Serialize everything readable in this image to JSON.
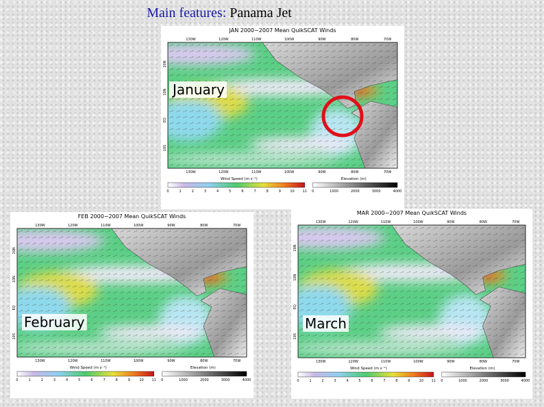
{
  "title": {
    "lead": "Main features:",
    "rest": "Panama Jet"
  },
  "panels": [
    {
      "map_title": "JAN 2000−2007 Mean QuikSCAT Winds",
      "month": "January",
      "lon_labels": [
        "130W",
        "120W",
        "110W",
        "100W",
        "90W",
        "80W",
        "70W"
      ],
      "lat_labels": [
        "20N",
        "10N",
        "EQ",
        "10S"
      ],
      "wind_caption": "Wind Speed (m s⁻¹)",
      "wind_ticks": [
        0,
        1,
        2,
        3,
        4,
        5,
        6,
        7,
        8,
        9,
        10,
        11
      ],
      "elev_caption": "Elevation (m)",
      "elev_ticks": [
        0,
        1000,
        2000,
        3000,
        4000
      ]
    },
    {
      "map_title": "FEB 2000−2007 Mean QuikSCAT Winds",
      "month": "February",
      "lon_labels": [
        "130W",
        "120W",
        "110W",
        "100W",
        "90W",
        "80W",
        "70W"
      ],
      "lat_labels": [
        "20N",
        "10N",
        "EQ",
        "10S"
      ],
      "wind_caption": "Wind Speed (m s⁻¹)",
      "wind_ticks": [
        0,
        1,
        2,
        3,
        4,
        5,
        6,
        7,
        8,
        9,
        10,
        11
      ],
      "elev_caption": "Elevation (m)",
      "elev_ticks": [
        0,
        1000,
        2000,
        3000,
        4000
      ]
    },
    {
      "map_title": "MAR 2000−2007 Mean QuikSCAT Winds",
      "month": "March",
      "lon_labels": [
        "130W",
        "120W",
        "110W",
        "100W",
        "90W",
        "80W",
        "70W"
      ],
      "lat_labels": [
        "20N",
        "10N",
        "EQ",
        "10S"
      ],
      "wind_caption": "Wind Speed (m s⁻¹)",
      "wind_ticks": [
        0,
        1,
        2,
        3,
        4,
        5,
        6,
        7,
        8,
        9,
        10,
        11
      ],
      "elev_caption": "Elevation (m)",
      "elev_ticks": [
        0,
        1000,
        2000,
        3000,
        4000
      ]
    }
  ]
}
